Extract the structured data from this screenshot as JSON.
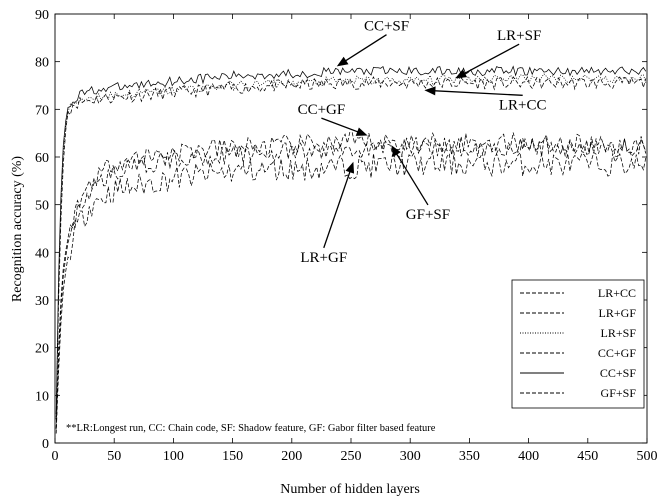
{
  "chart_data": {
    "type": "line",
    "xlabel": "Number of hidden layers",
    "ylabel": "Recognition accuracy (%)",
    "xlim": [
      0,
      500
    ],
    "ylim": [
      0,
      90
    ],
    "x_ticks": [
      0,
      50,
      100,
      150,
      200,
      250,
      300,
      350,
      400,
      450,
      500
    ],
    "y_ticks": [
      0,
      10,
      20,
      30,
      40,
      50,
      60,
      70,
      80,
      90
    ],
    "grid": false,
    "legend_position": "bottom-right",
    "legend": [
      "LR+CC",
      "LR+GF",
      "LR+SF",
      "CC+GF",
      "CC+SF",
      "GF+SF"
    ],
    "series": [
      {
        "name": "LR+CC",
        "style": "dashed",
        "x": [
          1,
          3,
          6,
          10,
          15,
          20,
          30,
          50,
          100,
          150,
          200,
          250,
          300,
          350,
          400,
          450,
          500
        ],
        "y": [
          5,
          30,
          55,
          69,
          71,
          71.5,
          72,
          72.5,
          73.5,
          74.5,
          75,
          75.5,
          75.5,
          75.5,
          75.5,
          75.5,
          75.5
        ]
      },
      {
        "name": "LR+GF",
        "style": "dashed",
        "x": [
          1,
          3,
          6,
          10,
          15,
          20,
          30,
          50,
          100,
          150,
          200,
          250,
          300,
          350,
          400,
          450,
          500
        ],
        "y": [
          2,
          15,
          30,
          38,
          43,
          46,
          50,
          53,
          55.5,
          57,
          57.5,
          58,
          58.5,
          58.5,
          58.5,
          58.5,
          58.5
        ]
      },
      {
        "name": "LR+SF",
        "style": "dotted",
        "x": [
          1,
          3,
          6,
          10,
          15,
          20,
          30,
          50,
          100,
          150,
          200,
          250,
          300,
          350,
          400,
          450,
          500
        ],
        "y": [
          5,
          32,
          58,
          69,
          71,
          72,
          72.5,
          73,
          74,
          75,
          75.5,
          76,
          76,
          76.5,
          76.5,
          76.5,
          76.5
        ]
      },
      {
        "name": "CC+GF",
        "style": "dashed",
        "x": [
          1,
          3,
          6,
          10,
          15,
          20,
          30,
          50,
          100,
          150,
          200,
          250,
          300,
          350,
          400,
          450,
          500
        ],
        "y": [
          3,
          20,
          35,
          42,
          47,
          50,
          55,
          59,
          61,
          62,
          62.5,
          63,
          63,
          63,
          63,
          62.5,
          62.5
        ]
      },
      {
        "name": "CC+SF",
        "style": "solid",
        "x": [
          1,
          3,
          6,
          10,
          15,
          20,
          30,
          50,
          100,
          150,
          200,
          250,
          300,
          350,
          400,
          450,
          500
        ],
        "y": [
          6,
          35,
          60,
          70,
          72,
          73,
          74,
          74.5,
          76,
          77,
          77.5,
          78,
          78,
          78,
          78,
          78,
          78
        ]
      },
      {
        "name": "GF+SF",
        "style": "dashed",
        "x": [
          1,
          3,
          6,
          10,
          15,
          20,
          30,
          50,
          100,
          150,
          200,
          250,
          300,
          350,
          400,
          450,
          500
        ],
        "y": [
          3,
          18,
          33,
          41,
          46,
          49,
          53,
          57,
          59.5,
          60.5,
          61,
          61.5,
          62,
          62,
          62,
          62,
          62
        ]
      }
    ],
    "annotations": [
      {
        "text": "CC+SF",
        "x": 280,
        "y": 86.5,
        "arrow_to": [
          238,
          79
        ]
      },
      {
        "text": "LR+SF",
        "x": 392,
        "y": 84.5,
        "arrow_to": [
          338,
          76.5
        ]
      },
      {
        "text": "LR+CC",
        "x": 395,
        "y": 70,
        "arrow_to": [
          312,
          74
        ]
      },
      {
        "text": "CC+GF",
        "x": 225,
        "y": 69,
        "arrow_to": [
          264,
          64.5
        ]
      },
      {
        "text": "GF+SF",
        "x": 315,
        "y": 47,
        "arrow_to": [
          284,
          62.5
        ]
      },
      {
        "text": "LR+GF",
        "x": 227,
        "y": 38,
        "arrow_to": [
          252,
          59
        ]
      }
    ],
    "footnote": "**LR:Longest run, CC: Chain code, SF: Shadow feature, GF: Gabor filter based feature"
  },
  "colors": {
    "line": "#000000",
    "background": "#ffffff"
  }
}
